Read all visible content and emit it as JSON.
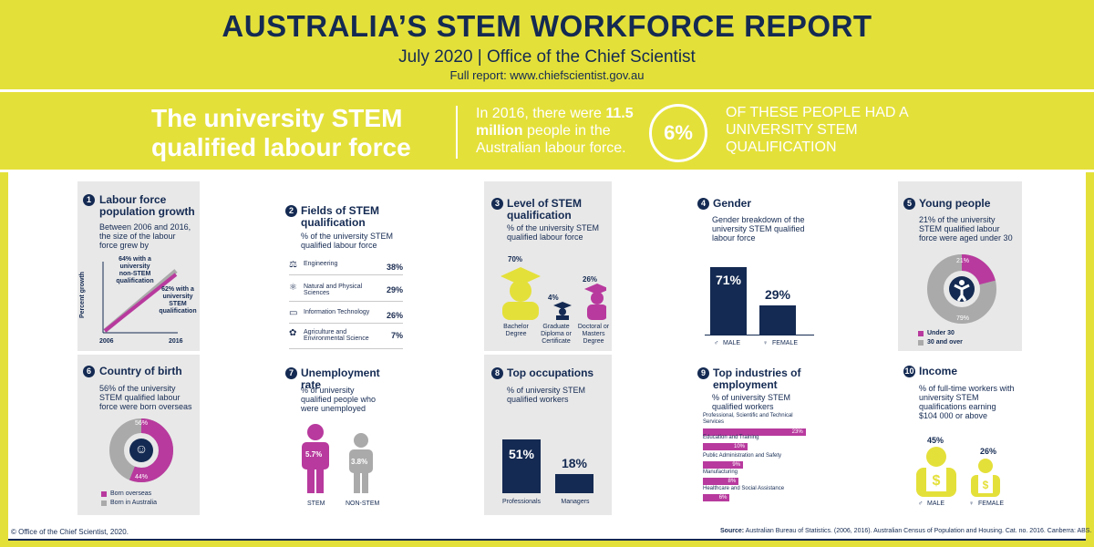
{
  "header": {
    "title": "AUSTRALIA’S STEM WORKFORCE REPORT",
    "date_line": "July 2020 | Office of the Chief Scientist",
    "url_line": "Full report: www.chiefscientist.gov.au"
  },
  "banner": {
    "title": "The university STEM qualified labour force",
    "text_pre": "In 2016, there were",
    "text_bold": "11.5 million",
    "text_post": "people in the Australian labour force.",
    "circle_pct": "6%",
    "right_text": "OF THESE PEOPLE HAD A UNIVERSITY STEM QUALIFICATION"
  },
  "panels": {
    "p1": {
      "num": "1",
      "title": "Labour force population growth",
      "sub": "Between 2006 and 2016, the size of the labour force grew by",
      "nonstem": "64% with a university non-STEM qualification",
      "stem": "62% with a university STEM qualification",
      "yaxis": "Percent growth",
      "x_start": "2006",
      "x_end": "2016",
      "nonstem_pct": 64,
      "stem_pct": 62
    },
    "p2": {
      "num": "2",
      "title": "Fields of STEM qualification",
      "sub": "% of the university STEM qualified labour force",
      "fields": [
        {
          "label": "Engineering",
          "pct": "38%",
          "icon": "compass-icon"
        },
        {
          "label": "Natural and Physical Sciences",
          "pct": "29%",
          "icon": "atom-icon"
        },
        {
          "label": "Information Technology",
          "pct": "26%",
          "icon": "computer-icon"
        },
        {
          "label": "Agriculture and Environmental Science",
          "pct": "7%",
          "icon": "plant-icon"
        }
      ]
    },
    "p3": {
      "num": "3",
      "title": "Level of STEM qualification",
      "sub": "% of the university STEM qualified labour force",
      "levels": [
        {
          "label": "Bachelor Degree",
          "pct": "70%"
        },
        {
          "label": "Graduate Diploma or Certificate",
          "pct": "4%"
        },
        {
          "label": "Doctoral or Masters Degree",
          "pct": "26%"
        }
      ]
    },
    "p4": {
      "num": "4",
      "title": "Gender",
      "sub": "Gender breakdown of the university STEM qualified labour force",
      "male_pct": "71%",
      "female_pct": "29%",
      "male_label": "MALE",
      "female_label": "FEMALE",
      "male_value": 71,
      "female_value": 29
    },
    "p5": {
      "num": "5",
      "title": "Young people",
      "sub": "21% of the university STEM qualified labour force were aged under 30",
      "under_pct": "21%",
      "over_pct": "79%",
      "under_value": 21,
      "legend_under": "Under 30",
      "legend_over": "30 and over"
    },
    "p6": {
      "num": "6",
      "title": "Country of birth",
      "sub": "56% of the university STEM qualified labour force were born overseas",
      "overseas_pct": "56%",
      "australia_pct": "44%",
      "overseas_value": 56,
      "legend_overseas": "Born overseas",
      "legend_australia": "Born in Australia"
    },
    "p7": {
      "num": "7",
      "title": "Unemployment rate",
      "sub": "% of university qualified people who were unemployed",
      "stem_pct": "5.7%",
      "nonstem_pct": "3.8%",
      "stem_label": "STEM",
      "nonstem_label": "NON-STEM"
    },
    "p8": {
      "num": "8",
      "title": "Top occupations",
      "sub": "% of university STEM qualified workers",
      "occupations": [
        {
          "label": "Professionals",
          "pct": "51%",
          "value": 51
        },
        {
          "label": "Managers",
          "pct": "18%",
          "value": 18
        }
      ]
    },
    "p9": {
      "num": "9",
      "title": "Top industries of employment",
      "sub": "% of university STEM qualified workers",
      "industries": [
        {
          "label": "Professional, Scientific and Technical Services",
          "pct": "23%",
          "value": 23
        },
        {
          "label": "Education and Training",
          "pct": "10%",
          "value": 10
        },
        {
          "label": "Public Administration and Safety",
          "pct": "9%",
          "value": 9
        },
        {
          "label": "Manufacturing",
          "pct": "8%",
          "value": 8
        },
        {
          "label": "Healthcare and Social Assistance",
          "pct": "6%",
          "value": 6
        }
      ]
    },
    "p10": {
      "num": "10",
      "title": "Income",
      "sub": "% of full-time workers with university STEM qualifications earning $104 000 or above",
      "male_pct": "45%",
      "female_pct": "26%",
      "male_label": "MALE",
      "female_label": "FEMALE"
    }
  },
  "footer": {
    "copyright": "© Office of the Chief Scientist, 2020.",
    "source_label": "Source:",
    "source_text": "Australian Bureau of Statistics. (2006, 2016). Australian Census of Population and Housing. Cat. no. 2016. Canberra: ABS."
  },
  "colors": {
    "navy": "#142a52",
    "magenta": "#b83a9e",
    "yellow": "#e4e03a",
    "grey": "#aaaaaa"
  }
}
